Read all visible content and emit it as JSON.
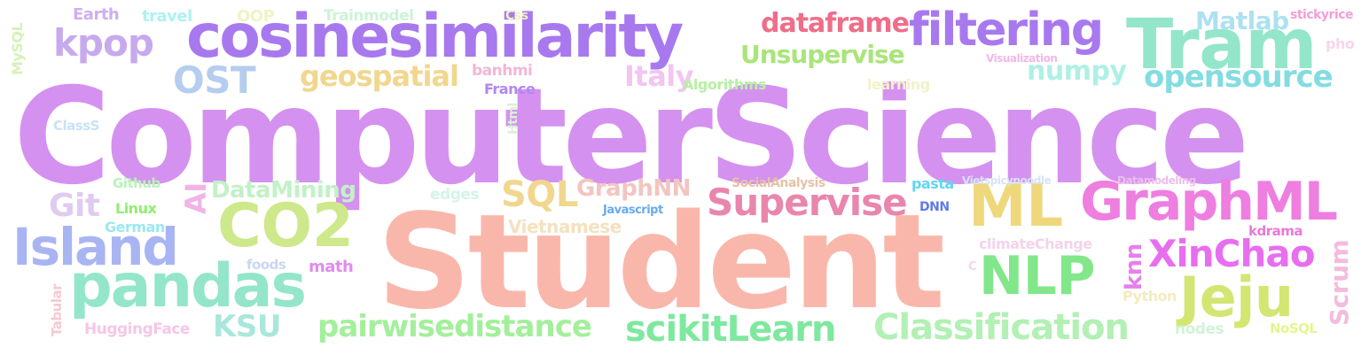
{
  "words": [
    {
      "text": "ComputerScience",
      "color": "#d591ef"
    },
    {
      "text": "Student",
      "color": "#f9b7ab"
    },
    {
      "text": "cosinesimilarity",
      "color": "#a879ee"
    },
    {
      "text": "Tram",
      "color": "#93e6c9"
    },
    {
      "text": "filtering",
      "color": "#a879ee"
    },
    {
      "text": "GraphML",
      "color": "#ee7ee0"
    },
    {
      "text": "ML",
      "color": "#efd87c"
    },
    {
      "text": "NLP",
      "color": "#82e68a"
    },
    {
      "text": "pandas",
      "color": "#93e6c9"
    },
    {
      "text": "CO2",
      "color": "#cde98b"
    },
    {
      "text": "Island",
      "color": "#a9b5f2"
    },
    {
      "text": "Jeju",
      "color": "#d3e672"
    },
    {
      "text": "XinChao",
      "color": "#e86ef0"
    },
    {
      "text": "Classification",
      "color": "#b2f0b4"
    },
    {
      "text": "scikitLearn",
      "color": "#7ee89f"
    },
    {
      "text": "Supervise",
      "color": "#e986ad"
    },
    {
      "text": "pairwisedistance",
      "color": "#a4ef9c"
    },
    {
      "text": "kpop",
      "color": "#c7a9ee"
    },
    {
      "text": "OST",
      "color": "#b5cdee"
    },
    {
      "text": "opensource",
      "color": "#83dce0"
    },
    {
      "text": "SQL",
      "color": "#f1d78e"
    },
    {
      "text": "dataframe",
      "color": "#ee6e89"
    },
    {
      "text": "geospatial",
      "color": "#f1d78e"
    },
    {
      "text": "Unsupervise",
      "color": "#a9e57a"
    },
    {
      "text": "Matlab",
      "color": "#aee1f0"
    },
    {
      "text": "numpy",
      "color": "#aef0e6"
    },
    {
      "text": "KSU",
      "color": "#a9e7dc"
    },
    {
      "text": "Git",
      "color": "#e0cbf0"
    },
    {
      "text": "AI",
      "color": "#f1b4e5"
    },
    {
      "text": "DataMining",
      "color": "#c2f1c7"
    },
    {
      "text": "GraphNN",
      "color": "#f3c5c0"
    },
    {
      "text": "Scrum",
      "color": "#f4bcdc"
    },
    {
      "text": "Italy",
      "color": "#f2c5f2"
    },
    {
      "text": "knn",
      "color": "#e680ec"
    },
    {
      "text": "Vietnamese",
      "color": "#f4e1bf"
    },
    {
      "text": "Earth",
      "color": "#cfaef0"
    },
    {
      "text": "travel",
      "color": "#aef2ee"
    },
    {
      "text": "OOP",
      "color": "#f0f3c3"
    },
    {
      "text": "Trainmodel",
      "color": "#cdf3d7"
    },
    {
      "text": "Css",
      "color": "#f2f0bd"
    },
    {
      "text": "stickyrice",
      "color": "#f19fd7"
    },
    {
      "text": "pho",
      "color": "#f7d5ee"
    },
    {
      "text": "MySQL",
      "color": "#d6f1b8"
    },
    {
      "text": "banhmi",
      "color": "#f3b6d6"
    },
    {
      "text": "France",
      "color": "#b187f0"
    },
    {
      "text": "Algorithms",
      "color": "#b6f0a4"
    },
    {
      "text": "learning",
      "color": "#f3f1c7"
    },
    {
      "text": "Visualization",
      "color": "#f4b7e4"
    },
    {
      "text": "ClassS",
      "color": "#c6e2f5"
    },
    {
      "text": "Html",
      "color": "#d9f1d7"
    },
    {
      "text": "Github",
      "color": "#b6f2b9"
    },
    {
      "text": "Linux",
      "color": "#8ff06d"
    },
    {
      "text": "German",
      "color": "#9be7f2"
    },
    {
      "text": "edges",
      "color": "#d4f4e7"
    },
    {
      "text": "Javascript",
      "color": "#66aaf0"
    },
    {
      "text": "SocialAnalysis",
      "color": "#e7c1a6"
    },
    {
      "text": "pasta",
      "color": "#62d6f0"
    },
    {
      "text": "Vietspicynoodle",
      "color": "#d5e3f5"
    },
    {
      "text": "Datamodeling",
      "color": "#ecbfe9"
    },
    {
      "text": "DNN",
      "color": "#5f79e8"
    },
    {
      "text": "kdrama",
      "color": "#e879d8"
    },
    {
      "text": "climateChange",
      "color": "#f3d3ea"
    },
    {
      "text": "foods",
      "color": "#c9d6f3"
    },
    {
      "text": "math",
      "color": "#e28aef"
    },
    {
      "text": "Python",
      "color": "#f4ecbe"
    },
    {
      "text": "C",
      "color": "#f6d3e8"
    },
    {
      "text": "Tabular",
      "color": "#f5c8d4"
    },
    {
      "text": "HuggingFace",
      "color": "#f5c7e6"
    },
    {
      "text": "nodes",
      "color": "#d1f2d8"
    },
    {
      "text": "NoSQL",
      "color": "#e6f58c"
    }
  ]
}
